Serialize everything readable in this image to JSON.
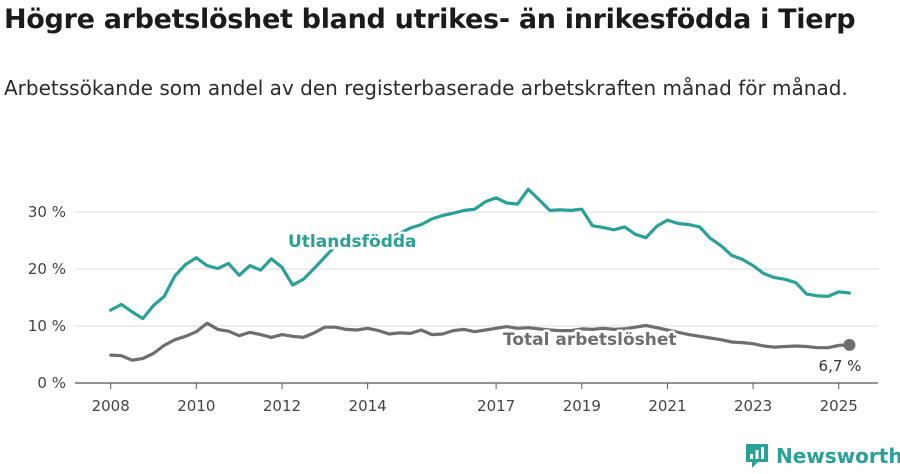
{
  "title": "Högre arbetslöshet bland utrikes- än inrikesfödda i Tierp",
  "subtitle": "Arbetssökande som andel av den registerbaserade arbetskraften månad för månad.",
  "brand": {
    "name": "Newsworthy",
    "color": "#2aa198"
  },
  "chart_data": {
    "type": "line",
    "x_ticks": [
      "2008",
      "2010",
      "2012",
      "2014",
      "2017",
      "2019",
      "2021",
      "2023",
      "2025"
    ],
    "y_ticks": [
      {
        "value": 0,
        "label": "0 %"
      },
      {
        "value": 10,
        "label": "10 %"
      },
      {
        "value": 20,
        "label": "20 %"
      },
      {
        "value": 30,
        "label": "30 %"
      }
    ],
    "ylim": [
      0,
      33
    ],
    "xlim": [
      "2007-03",
      "2025-12"
    ],
    "grid": true,
    "series": [
      {
        "name": "Utlandsfödda",
        "color": "#2aa198",
        "points": [
          [
            "2008-01",
            12.8
          ],
          [
            "2008-04",
            13.8
          ],
          [
            "2008-07",
            12.5
          ],
          [
            "2008-10",
            11.3
          ],
          [
            "2009-01",
            13.6
          ],
          [
            "2009-04",
            15.2
          ],
          [
            "2009-07",
            18.8
          ],
          [
            "2009-10",
            20.8
          ],
          [
            "2010-01",
            22.0
          ],
          [
            "2010-04",
            20.6
          ],
          [
            "2010-07",
            20.1
          ],
          [
            "2010-10",
            21.0
          ],
          [
            "2011-01",
            18.9
          ],
          [
            "2011-04",
            20.6
          ],
          [
            "2011-07",
            19.8
          ],
          [
            "2011-10",
            21.8
          ],
          [
            "2012-01",
            20.3
          ],
          [
            "2012-04",
            17.2
          ],
          [
            "2012-07",
            18.2
          ],
          [
            "2012-10",
            20.1
          ],
          [
            "2013-01",
            22.1
          ],
          [
            "2013-04",
            24.1
          ],
          [
            "2013-07",
            25.5
          ],
          [
            "2013-10",
            24.3
          ],
          [
            "2014-01",
            24.8
          ],
          [
            "2014-04",
            24.6
          ],
          [
            "2014-07",
            25.4
          ],
          [
            "2014-10",
            26.3
          ],
          [
            "2015-01",
            27.2
          ],
          [
            "2015-04",
            27.8
          ],
          [
            "2015-07",
            28.8
          ],
          [
            "2015-10",
            29.4
          ],
          [
            "2016-01",
            29.8
          ],
          [
            "2016-04",
            30.3
          ],
          [
            "2016-07",
            30.5
          ],
          [
            "2016-10",
            31.8
          ],
          [
            "2017-01",
            32.5
          ],
          [
            "2017-04",
            31.6
          ],
          [
            "2017-07",
            31.4
          ],
          [
            "2017-10",
            34.0
          ],
          [
            "2018-01",
            32.2
          ],
          [
            "2018-04",
            30.3
          ],
          [
            "2018-07",
            30.4
          ],
          [
            "2018-10",
            30.3
          ],
          [
            "2019-01",
            30.5
          ],
          [
            "2019-04",
            27.6
          ],
          [
            "2019-07",
            27.3
          ],
          [
            "2019-10",
            26.9
          ],
          [
            "2020-01",
            27.4
          ],
          [
            "2020-04",
            26.1
          ],
          [
            "2020-07",
            25.5
          ],
          [
            "2020-10",
            27.5
          ],
          [
            "2021-01",
            28.6
          ],
          [
            "2021-04",
            28.0
          ],
          [
            "2021-07",
            27.8
          ],
          [
            "2021-10",
            27.4
          ],
          [
            "2022-01",
            25.4
          ],
          [
            "2022-04",
            24.1
          ],
          [
            "2022-07",
            22.4
          ],
          [
            "2022-10",
            21.7
          ],
          [
            "2023-01",
            20.6
          ],
          [
            "2023-04",
            19.2
          ],
          [
            "2023-07",
            18.5
          ],
          [
            "2023-10",
            18.2
          ],
          [
            "2024-01",
            17.6
          ],
          [
            "2024-04",
            15.6
          ],
          [
            "2024-07",
            15.3
          ],
          [
            "2024-10",
            15.2
          ],
          [
            "2025-01",
            16.0
          ],
          [
            "2025-04",
            15.8
          ]
        ]
      },
      {
        "name": "Total arbetslöshet",
        "color": "#6e6e6e",
        "points": [
          [
            "2008-01",
            4.9
          ],
          [
            "2008-04",
            4.8
          ],
          [
            "2008-07",
            4.0
          ],
          [
            "2008-10",
            4.3
          ],
          [
            "2009-01",
            5.2
          ],
          [
            "2009-04",
            6.6
          ],
          [
            "2009-07",
            7.6
          ],
          [
            "2009-10",
            8.2
          ],
          [
            "2010-01",
            9.0
          ],
          [
            "2010-04",
            10.5
          ],
          [
            "2010-07",
            9.4
          ],
          [
            "2010-10",
            9.1
          ],
          [
            "2011-01",
            8.3
          ],
          [
            "2011-04",
            8.9
          ],
          [
            "2011-07",
            8.5
          ],
          [
            "2011-10",
            8.0
          ],
          [
            "2012-01",
            8.5
          ],
          [
            "2012-04",
            8.2
          ],
          [
            "2012-07",
            8.0
          ],
          [
            "2012-10",
            8.8
          ],
          [
            "2013-01",
            9.8
          ],
          [
            "2013-04",
            9.8
          ],
          [
            "2013-07",
            9.4
          ],
          [
            "2013-10",
            9.3
          ],
          [
            "2014-01",
            9.6
          ],
          [
            "2014-04",
            9.2
          ],
          [
            "2014-07",
            8.6
          ],
          [
            "2014-10",
            8.8
          ],
          [
            "2015-01",
            8.7
          ],
          [
            "2015-04",
            9.3
          ],
          [
            "2015-07",
            8.5
          ],
          [
            "2015-10",
            8.6
          ],
          [
            "2016-01",
            9.2
          ],
          [
            "2016-04",
            9.4
          ],
          [
            "2016-07",
            9.0
          ],
          [
            "2016-10",
            9.3
          ],
          [
            "2017-01",
            9.6
          ],
          [
            "2017-04",
            9.9
          ],
          [
            "2017-07",
            9.6
          ],
          [
            "2017-10",
            9.7
          ],
          [
            "2018-01",
            9.5
          ],
          [
            "2018-04",
            9.3
          ],
          [
            "2018-07",
            9.2
          ],
          [
            "2018-10",
            9.2
          ],
          [
            "2019-01",
            9.5
          ],
          [
            "2019-04",
            9.4
          ],
          [
            "2019-07",
            9.6
          ],
          [
            "2019-10",
            9.4
          ],
          [
            "2020-01",
            9.5
          ],
          [
            "2020-04",
            9.8
          ],
          [
            "2020-07",
            10.1
          ],
          [
            "2020-10",
            9.7
          ],
          [
            "2021-01",
            9.3
          ],
          [
            "2021-04",
            8.9
          ],
          [
            "2021-07",
            8.5
          ],
          [
            "2021-10",
            8.2
          ],
          [
            "2022-01",
            7.9
          ],
          [
            "2022-04",
            7.6
          ],
          [
            "2022-07",
            7.2
          ],
          [
            "2022-10",
            7.1
          ],
          [
            "2023-01",
            6.9
          ],
          [
            "2023-04",
            6.5
          ],
          [
            "2023-07",
            6.3
          ],
          [
            "2023-10",
            6.4
          ],
          [
            "2024-01",
            6.5
          ],
          [
            "2024-04",
            6.4
          ],
          [
            "2024-07",
            6.2
          ],
          [
            "2024-10",
            6.2
          ],
          [
            "2025-01",
            6.6
          ],
          [
            "2025-04",
            6.7
          ]
        ]
      }
    ],
    "annotations": {
      "series_label_1": "Utlandsfödda",
      "series_label_2": "Total arbetslöshet",
      "end_value": "6,7 %"
    }
  }
}
